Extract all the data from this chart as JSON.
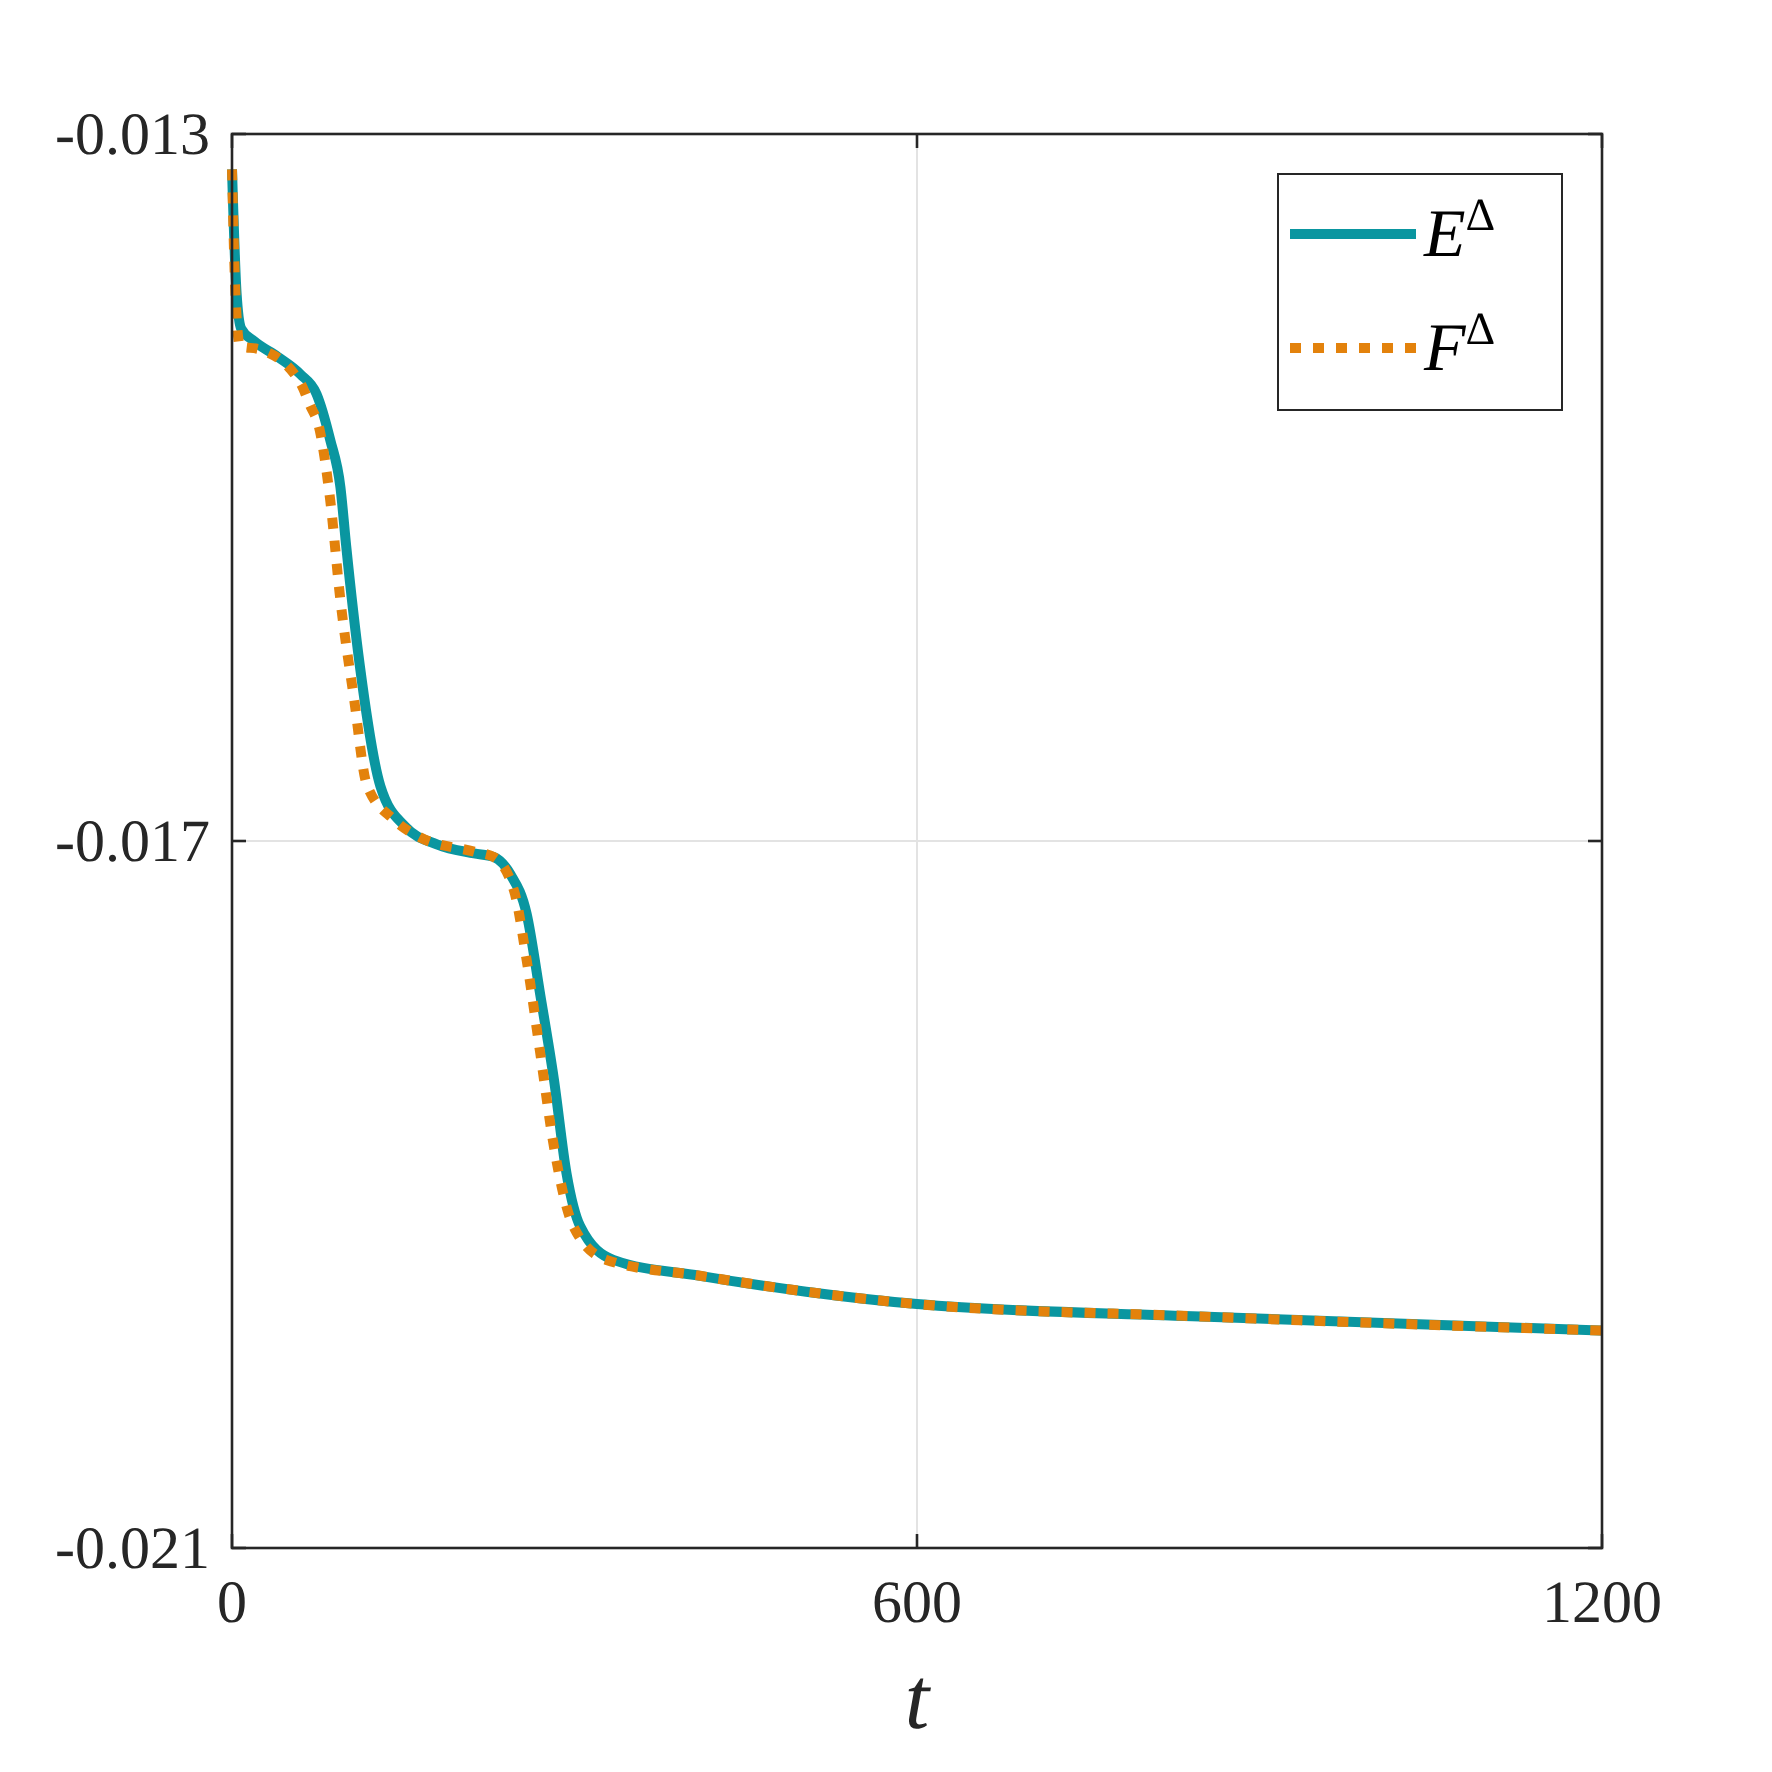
{
  "chart_data": {
    "type": "line",
    "xlabel": "t",
    "xlim": [
      0,
      1200
    ],
    "xticks": [
      0,
      600,
      1200
    ],
    "ylim": [
      -0.021,
      -0.013
    ],
    "yticks": [
      -0.013,
      -0.017,
      -0.021
    ],
    "grid": true,
    "legend": "top right",
    "series": [
      {
        "name": "E$^{Δ}$",
        "color": "#0a96a0",
        "line_style": "solid",
        "x": [
          0,
          4,
          8,
          19,
          40,
          60,
          74,
          86,
          95,
          100,
          112,
          130,
          152,
          180,
          212,
          229,
          244,
          258,
          270,
          282,
          293,
          305,
          334,
          410,
          503,
          600,
          848,
          1200
        ],
        "values": [
          -0.0132,
          -0.0139,
          -0.0141,
          -0.01417,
          -0.01426,
          -0.01436,
          -0.01447,
          -0.01473,
          -0.015,
          -0.01533,
          -0.01601,
          -0.01669,
          -0.01692,
          -0.01702,
          -0.01707,
          -0.01709,
          -0.01719,
          -0.01741,
          -0.01787,
          -0.01835,
          -0.01888,
          -0.01918,
          -0.01937,
          -0.01946,
          -0.01955,
          -0.01962,
          -0.01969,
          -0.01977
        ]
      },
      {
        "name": "F$^{Δ}$",
        "color": "#e3820c",
        "line_style": "dotted",
        "x": [
          0,
          3,
          7,
          25,
          60,
          68,
          77,
          86,
          95,
          107,
          118,
          142,
          165,
          212,
          229,
          247,
          258,
          270,
          282,
          299,
          328,
          410,
          503,
          600,
          848,
          1200
        ],
        "values": [
          -0.0132,
          -0.0139,
          -0.0142,
          -0.01422,
          -0.01441,
          -0.01453,
          -0.01468,
          -0.01507,
          -0.01564,
          -0.0162,
          -0.01668,
          -0.01688,
          -0.01698,
          -0.01706,
          -0.01709,
          -0.01728,
          -0.01767,
          -0.0182,
          -0.01873,
          -0.01918,
          -0.01937,
          -0.01946,
          -0.01955,
          -0.01962,
          -0.01969,
          -0.01977
        ]
      }
    ]
  }
}
